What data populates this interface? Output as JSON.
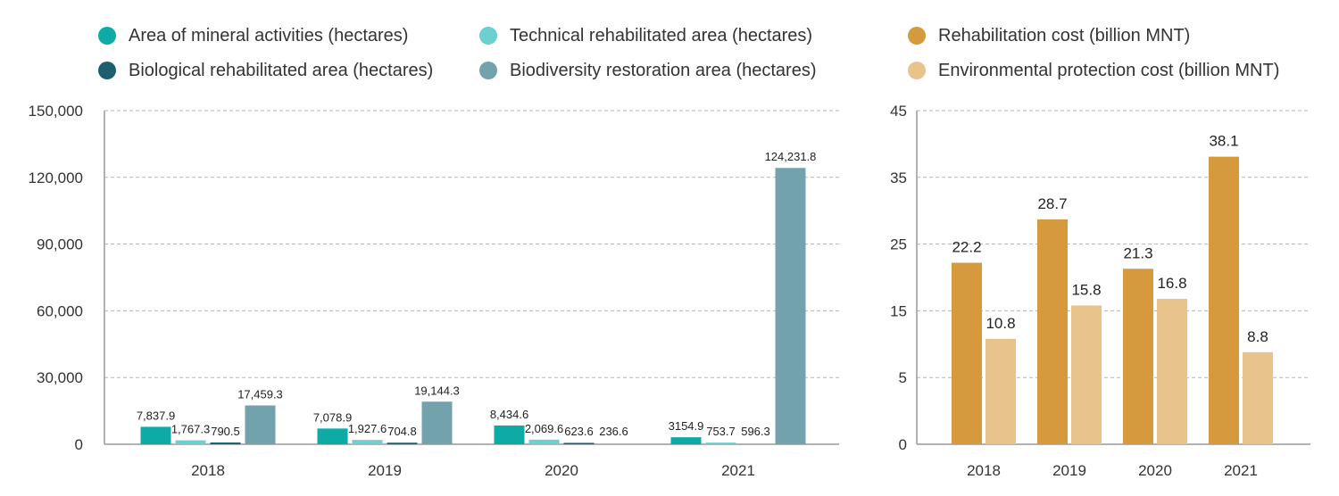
{
  "chart_data": [
    {
      "type": "bar",
      "title": "",
      "xlabel": "",
      "ylabel": "",
      "categories": [
        "2018",
        "2019",
        "2020",
        "2021"
      ],
      "ylim": [
        0,
        150000
      ],
      "yticks": [
        0,
        30000,
        60000,
        90000,
        120000,
        150000
      ],
      "ytick_labels": [
        "0",
        "30,000",
        "60,000",
        "90,000",
        "120,000",
        "150,000"
      ],
      "grid": true,
      "legend_position": "top-left",
      "series": [
        {
          "name": "Area of mineral activities (hectares)",
          "color": "#0eaaa6",
          "values": [
            7837.9,
            7078.9,
            8434.6,
            3154.9
          ],
          "labels": [
            "7,837.9",
            "7,078.9",
            "8,434.6",
            "3154.9"
          ]
        },
        {
          "name": "Technical rehabilitated area (hectares)",
          "color": "#6ccfd0",
          "values": [
            1767.3,
            1927.6,
            2069.6,
            753.7
          ],
          "labels": [
            "1,767.3",
            "1,927.6",
            "2,069.6",
            "753.7"
          ]
        },
        {
          "name": "Biological rehabilitated area (hectares)",
          "color": "#1d5f6e",
          "values": [
            790.5,
            704.8,
            623.6,
            596.3
          ],
          "labels": [
            "790.5",
            "704.8",
            "623.6",
            "596.3"
          ]
        },
        {
          "name": "Biodiversity restoration area (hectares)",
          "color": "#72a2ac",
          "values": [
            17459.3,
            19144.3,
            236.6,
            124231.8
          ],
          "labels": [
            "17,459.3",
            "19,144.3",
            "236.6",
            "124,231.8"
          ]
        }
      ]
    },
    {
      "type": "bar",
      "title": "",
      "xlabel": "",
      "ylabel": "",
      "categories": [
        "2018",
        "2019",
        "2020",
        "2021"
      ],
      "ylim": [
        0,
        45
      ],
      "yticks": [
        0,
        5,
        15,
        25,
        35,
        45
      ],
      "ytick_labels": [
        "0",
        "5",
        "15",
        "25",
        "35",
        "45"
      ],
      "grid": true,
      "legend_position": "top-right",
      "series": [
        {
          "name": "Rehabilitation cost (billion MNT)",
          "color": "#d69a3e",
          "values": [
            22.2,
            28.7,
            21.3,
            38.1
          ],
          "labels": [
            "22.2",
            "28.7",
            "21.3",
            "38.1"
          ]
        },
        {
          "name": "Environmental protection cost (billion MNT)",
          "color": "#e8c48c",
          "values": [
            10.8,
            15.8,
            16.8,
            8.8
          ],
          "labels": [
            "10.8",
            "15.8",
            "16.8",
            "8.8"
          ]
        }
      ]
    }
  ]
}
